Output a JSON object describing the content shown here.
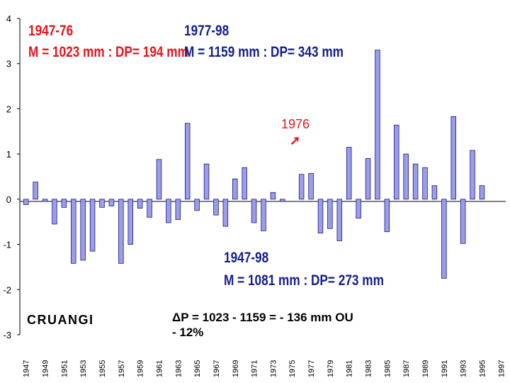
{
  "chart_data": {
    "type": "bar",
    "station": "CRUANGI",
    "ylim": [
      -3,
      4
    ],
    "yticks": [
      4,
      3,
      2,
      1,
      0,
      -1,
      -2,
      -3
    ],
    "x_labels": [
      "1947",
      "1949",
      "1951",
      "1953",
      "1955",
      "1957",
      "1959",
      "1961",
      "1963",
      "1965",
      "1967",
      "1969",
      "1971",
      "1973",
      "1975",
      "1977",
      "1979",
      "1981",
      "1983",
      "1985",
      "1987",
      "1989",
      "1991",
      "1993",
      "1995",
      "1997"
    ],
    "years": [
      1947,
      1948,
      1949,
      1950,
      1951,
      1952,
      1953,
      1954,
      1955,
      1956,
      1957,
      1958,
      1959,
      1960,
      1961,
      1962,
      1963,
      1964,
      1965,
      1966,
      1967,
      1968,
      1969,
      1970,
      1971,
      1972,
      1973,
      1974,
      1975,
      1976,
      1977,
      1978,
      1979,
      1980,
      1981,
      1982,
      1983,
      1984,
      1985,
      1986,
      1987,
      1988,
      1989,
      1990,
      1991,
      1992,
      1993,
      1994,
      1995,
      1996,
      1997
    ],
    "values": [
      -0.12,
      0.38,
      -0.05,
      -0.55,
      -0.18,
      -1.42,
      -1.35,
      -1.15,
      -0.18,
      -0.15,
      -1.42,
      -1.0,
      -0.2,
      -0.4,
      0.88,
      -0.52,
      -0.45,
      1.68,
      -0.25,
      0.78,
      -0.35,
      -0.6,
      0.45,
      0.7,
      -0.52,
      -0.7,
      0.15,
      -0.05,
      0.0,
      0.55,
      0.57,
      -0.75,
      -0.65,
      -0.92,
      1.15,
      -0.42,
      0.9,
      3.3,
      -0.72,
      1.64,
      1.0,
      0.78,
      0.7,
      0.3,
      -1.75,
      1.83,
      -0.98,
      1.08,
      0.3,
      0.0,
      0.0
    ],
    "bar_color": "#9c9cec",
    "bar_edge_color": "#1c1c7c"
  },
  "annotations": {
    "period_a": {
      "title": "1947-76",
      "stats": "M =  1023 mm : DP= 194 mm"
    },
    "period_b": {
      "title": "1977-98",
      "stats": "M =  1159 mm : DP= 343 mm"
    },
    "period_all": {
      "title": "1947-98",
      "stats": "M =  1081 mm : DP= 273 mm"
    },
    "highlight_year": "1976",
    "highlight_arrow": "➚",
    "delta_line1": "ΔP = 1023 - 1159 = - 136 mm OU",
    "delta_line2": "- 12%"
  },
  "colors": {
    "red": "#e8141b",
    "blue": "#141f8c",
    "axis": "#000000"
  }
}
